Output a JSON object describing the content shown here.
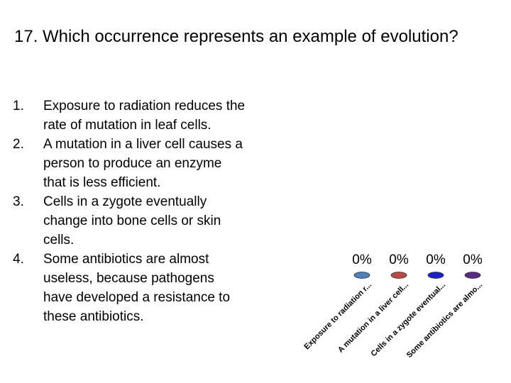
{
  "question": {
    "title": "17. Which occurrence represents an example of evolution?"
  },
  "answers": [
    {
      "number": "1.",
      "text": "Exposure to radiation reduces the rate of mutation in leaf cells."
    },
    {
      "number": "2.",
      "text": "A mutation in a liver cell causes a person to produce an enzyme that is less efficient."
    },
    {
      "number": "3.",
      "text": "Cells in a zygote eventually change into bone cells or skin cells."
    },
    {
      "number": "4.",
      "text": "Some antibiotics are almost useless, because pathogens have developed a resistance to these antibiotics."
    }
  ],
  "chart_data": {
    "type": "bar",
    "categories": [
      "Exposure to radiation r...",
      "A mutation in a liver cell...",
      "Cells in a zygote eventual...",
      "Some antibiotics are almo..."
    ],
    "values": [
      0,
      0,
      0,
      0
    ],
    "value_labels": [
      "0%",
      "0%",
      "0%",
      "0%"
    ],
    "colors": [
      "#4f7fb8",
      "#b84a48",
      "#1f1fcf",
      "#5a2a80"
    ],
    "ylim": [
      0,
      100
    ]
  }
}
